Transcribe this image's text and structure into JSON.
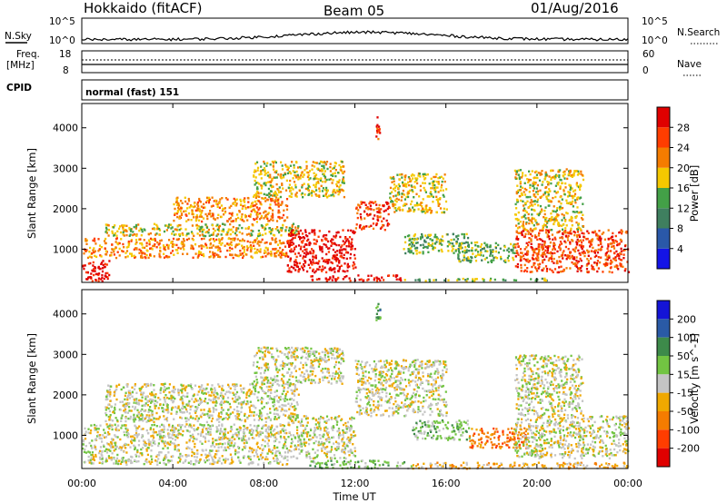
{
  "header": {
    "station": "Hokkaido (fitACF)",
    "beam": "Beam 05",
    "date": "01/Aug/2016"
  },
  "panels": {
    "nsky": {
      "left_label": "N.Sky",
      "top_tick": "10^5",
      "bottom_tick": "10^0",
      "right_label": "N.Search",
      "right_top_tick": "10^5",
      "right_bottom_tick": "10^0"
    },
    "freq": {
      "left_label_1": "Freq.",
      "left_label_2": "[MHz]",
      "top_tick": "18",
      "bottom_tick": "8",
      "right_label": "Nave",
      "right_top_tick": "60",
      "right_bottom_tick": "0"
    },
    "cpid": {
      "left_label": "CPID",
      "mode_text": "normal (fast) 151"
    }
  },
  "colors": {
    "power": [
      "#1414e6",
      "#2a58a8",
      "#3f7f5f",
      "#43a047",
      "#f5c800",
      "#f57c00",
      "#ff3d00",
      "#e00000"
    ],
    "velocity": [
      "#1414d6",
      "#2a5aa6",
      "#3d8a4a",
      "#72c442",
      "#c4c4c4",
      "#f0a800",
      "#f57c00",
      "#ff3d00",
      "#e00000"
    ]
  },
  "chart_data": [
    {
      "type": "heatmap",
      "title": "Power",
      "ylabel": "Slant Range [km]",
      "xlabel": "",
      "colorbar_label": "Power [dB]",
      "colorbar_ticks": [
        "4",
        "8",
        "12",
        "16",
        "20",
        "24",
        "28"
      ],
      "y_ticks": [
        "1000",
        "2000",
        "3000",
        "4000"
      ],
      "ylim": [
        180,
        4600
      ],
      "xlim": [
        0,
        24
      ],
      "regions": [
        {
          "t0": 0.0,
          "t1": 1.2,
          "r0": 230,
          "r1": 750,
          "level": 7
        },
        {
          "t0": 0.0,
          "t1": 9.0,
          "r0": 800,
          "r1": 1300,
          "level": 5
        },
        {
          "t0": 1.0,
          "t1": 9.5,
          "r0": 1350,
          "r1": 1650,
          "level": 4
        },
        {
          "t0": 4.0,
          "t1": 9.0,
          "r0": 1700,
          "r1": 2300,
          "level": 5
        },
        {
          "t0": 9.0,
          "t1": 12.0,
          "r0": 450,
          "r1": 1500,
          "level": 7
        },
        {
          "t0": 12.0,
          "t1": 13.5,
          "r0": 1500,
          "r1": 2200,
          "level": 6
        },
        {
          "t0": 13.5,
          "t1": 16.0,
          "r0": 1900,
          "r1": 2900,
          "level": 4
        },
        {
          "t0": 7.5,
          "t1": 11.5,
          "r0": 2300,
          "r1": 3200,
          "level": 4
        },
        {
          "t0": 10.0,
          "t1": 14.0,
          "r0": 230,
          "r1": 380,
          "level": 7
        },
        {
          "t0": 14.0,
          "t1": 20.5,
          "r0": 230,
          "r1": 300,
          "level": 3
        },
        {
          "t0": 14.0,
          "t1": 17.0,
          "r0": 900,
          "r1": 1400,
          "level": 3
        },
        {
          "t0": 16.5,
          "t1": 19.0,
          "r0": 700,
          "r1": 1200,
          "level": 3
        },
        {
          "t0": 19.0,
          "t1": 24.0,
          "r0": 450,
          "r1": 1500,
          "level": 6
        },
        {
          "t0": 19.0,
          "t1": 22.0,
          "r0": 1500,
          "r1": 3000,
          "level": 4
        },
        {
          "t0": 12.9,
          "t1": 13.1,
          "r0": 3700,
          "r1": 4300,
          "level": 6
        }
      ]
    },
    {
      "type": "heatmap",
      "title": "Velocity",
      "ylabel": "Slant Range [km]",
      "xlabel": "Time UT",
      "colorbar_label": "Velocity [m s^-1]",
      "colorbar_ticks": [
        "200",
        "100",
        "50",
        "15",
        "-15",
        "-50",
        "-100",
        "-200"
      ],
      "y_ticks": [
        "1000",
        "2000",
        "3000",
        "4000"
      ],
      "x_ticks": [
        "00:00",
        "04:00",
        "08:00",
        "12:00",
        "16:00",
        "20:00",
        "00:00"
      ],
      "ylim": [
        180,
        4600
      ],
      "xlim": [
        0,
        24
      ],
      "regions": [
        {
          "t0": 0.0,
          "t1": 9.0,
          "r0": 300,
          "r1": 1300,
          "level": 4
        },
        {
          "t0": 1.0,
          "t1": 9.5,
          "r0": 1350,
          "r1": 2300,
          "level": 4
        },
        {
          "t0": 9.0,
          "t1": 12.0,
          "r0": 450,
          "r1": 1500,
          "level": 4
        },
        {
          "t0": 12.0,
          "t1": 16.0,
          "r0": 1500,
          "r1": 2900,
          "level": 4
        },
        {
          "t0": 7.5,
          "t1": 11.5,
          "r0": 2300,
          "r1": 3200,
          "level": 4
        },
        {
          "t0": 10.0,
          "t1": 14.5,
          "r0": 200,
          "r1": 400,
          "level": 3
        },
        {
          "t0": 14.5,
          "t1": 17.0,
          "r0": 900,
          "r1": 1400,
          "level": 3
        },
        {
          "t0": 17.0,
          "t1": 19.5,
          "r0": 700,
          "r1": 1200,
          "level": 6
        },
        {
          "t0": 14.5,
          "t1": 24.0,
          "r0": 200,
          "r1": 350,
          "level": 5
        },
        {
          "t0": 19.0,
          "t1": 24.0,
          "r0": 450,
          "r1": 1500,
          "level": 4
        },
        {
          "t0": 19.0,
          "t1": 22.0,
          "r0": 1500,
          "r1": 3000,
          "level": 4
        },
        {
          "t0": 12.9,
          "t1": 13.1,
          "r0": 3700,
          "r1": 4300,
          "level": 2
        }
      ]
    }
  ]
}
